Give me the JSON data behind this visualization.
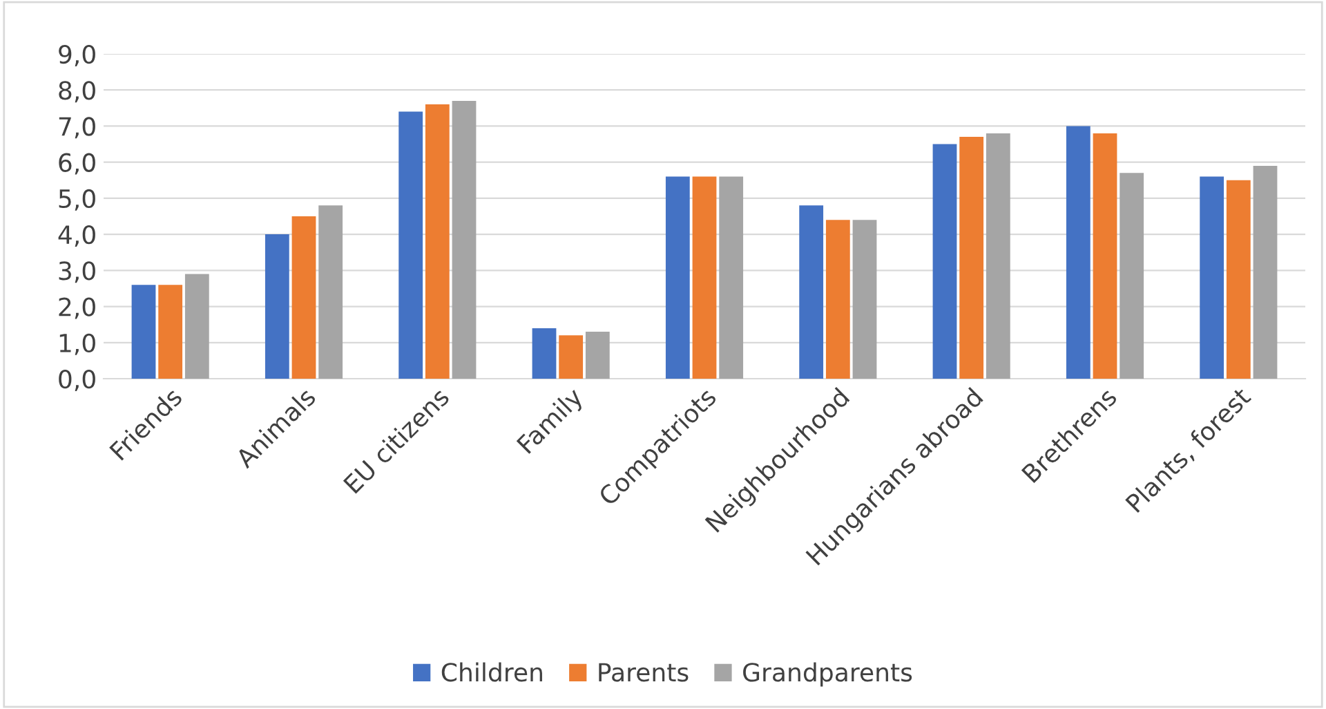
{
  "chart_data": {
    "type": "bar",
    "categories": [
      "Friends",
      "Animals",
      "EU citizens",
      "Family",
      "Compatriots",
      "Neighbourhood",
      "Hungarians abroad",
      "Brethrens",
      "Plants, forest"
    ],
    "series": [
      {
        "name": "Children",
        "color": "#4472c4",
        "values": [
          2.6,
          4.0,
          7.4,
          1.4,
          5.6,
          4.8,
          6.5,
          7.0,
          5.6
        ]
      },
      {
        "name": "Parents",
        "color": "#ed7d31",
        "values": [
          2.6,
          4.5,
          7.6,
          1.2,
          5.6,
          4.4,
          6.7,
          6.8,
          5.5
        ]
      },
      {
        "name": "Grandparents",
        "color": "#a5a5a5",
        "values": [
          2.9,
          4.8,
          7.7,
          1.3,
          5.6,
          4.4,
          6.8,
          5.7,
          5.9
        ]
      }
    ],
    "ylim": [
      0,
      9
    ],
    "yticks": [
      {
        "value": 0,
        "label": "0,0"
      },
      {
        "value": 1,
        "label": "1,0"
      },
      {
        "value": 2,
        "label": "2,0"
      },
      {
        "value": 3,
        "label": "3,0"
      },
      {
        "value": 4,
        "label": "4,0"
      },
      {
        "value": 5,
        "label": "5,0"
      },
      {
        "value": 6,
        "label": "6,0"
      },
      {
        "value": 7,
        "label": "7,0"
      },
      {
        "value": 8,
        "label": "8,0"
      },
      {
        "value": 9,
        "label": "9,0"
      }
    ],
    "grid": "y",
    "legend": "bottom"
  }
}
